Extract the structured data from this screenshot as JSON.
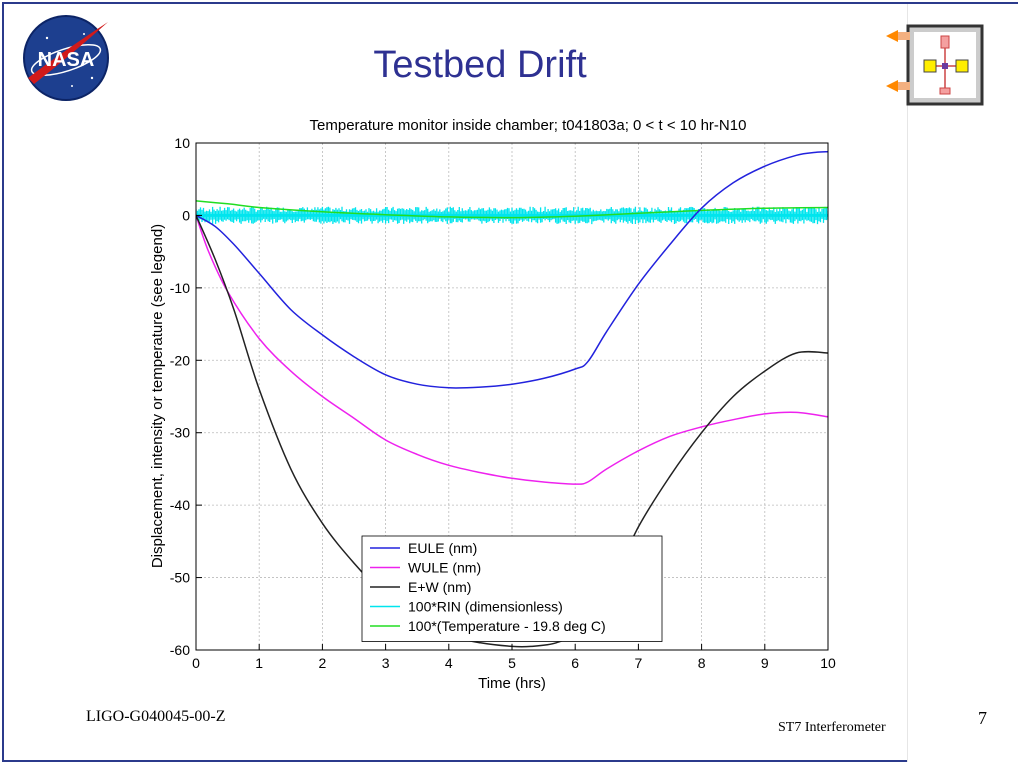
{
  "slide": {
    "title": "Testbed Drift",
    "footer_left": "LIGO-G040045-00-Z",
    "footer_right": "ST7  Interferometer",
    "page_number": "7"
  },
  "logos": {
    "nasa_text": "NASA"
  },
  "colors": {
    "frame": "#2b3a8c",
    "title": "#2e3192"
  },
  "chart_data": {
    "type": "line",
    "title": "Temperature monitor inside chamber; t041803a; 0 < t < 10 hr-N10",
    "xlabel": "Time (hrs)",
    "ylabel": "Displacement, intensity or temperature (see legend)",
    "xlim": [
      0,
      10
    ],
    "ylim": [
      -60,
      10
    ],
    "xticks": [
      0,
      1,
      2,
      3,
      4,
      5,
      6,
      7,
      8,
      9,
      10
    ],
    "yticks": [
      10,
      0,
      -10,
      -20,
      -30,
      -40,
      -50,
      -60
    ],
    "grid": true,
    "legend_position": "bottom-center",
    "series": [
      {
        "name": "EULE (nm)",
        "color": "#2222dd",
        "x": [
          0,
          0.3,
          0.6,
          1.0,
          1.5,
          2.0,
          2.5,
          3.0,
          3.5,
          4.0,
          4.5,
          5.0,
          5.5,
          6.0,
          6.2,
          6.5,
          7.0,
          7.5,
          8.0,
          8.5,
          9.0,
          9.5,
          9.8,
          10.0
        ],
        "y": [
          0,
          -1.5,
          -4,
          -8,
          -13,
          -16.5,
          -19.5,
          -22,
          -23.3,
          -23.8,
          -23.7,
          -23.3,
          -22.5,
          -21.2,
          -20.2,
          -16,
          -9.5,
          -4,
          1,
          4.5,
          6.8,
          8.3,
          8.7,
          8.8
        ]
      },
      {
        "name": "WULE (nm)",
        "color": "#ee22ee",
        "x": [
          0,
          0.2,
          0.5,
          1.0,
          1.5,
          2.0,
          2.5,
          3.0,
          3.5,
          4.0,
          4.5,
          5.0,
          5.5,
          6.0,
          6.2,
          6.5,
          7.0,
          7.5,
          8.0,
          8.5,
          9.0,
          9.5,
          10.0
        ],
        "y": [
          0,
          -5,
          -10.5,
          -17,
          -21.5,
          -25,
          -28,
          -31,
          -33,
          -34.5,
          -35.5,
          -36.3,
          -36.8,
          -37.1,
          -36.8,
          -35,
          -32.5,
          -30.5,
          -29.2,
          -28.2,
          -27.4,
          -27.2,
          -27.8
        ]
      },
      {
        "name": "E+W (nm)",
        "color": "#222222",
        "x": [
          0,
          0.3,
          0.6,
          1.0,
          1.5,
          2.0,
          2.5,
          3.0,
          3.5,
          4.0,
          4.5,
          5.0,
          5.3,
          5.7,
          6.0,
          6.5,
          7.0,
          7.5,
          8.0,
          8.5,
          9.0,
          9.5,
          10.0
        ],
        "y": [
          0,
          -6,
          -13,
          -24,
          -35,
          -42.5,
          -48,
          -52.5,
          -56,
          -58,
          -59,
          -59.5,
          -59.5,
          -59,
          -57.5,
          -52,
          -43,
          -36,
          -30,
          -25,
          -21.5,
          -19,
          -19
        ]
      },
      {
        "name": "100*RIN (dimensionless)",
        "color": "#00e5ee",
        "x": [
          0,
          10
        ],
        "y": [
          0,
          0
        ],
        "noise_band": [
          -1.2,
          1.2
        ]
      },
      {
        "name": "100*(Temperature - 19.8 deg C)",
        "color": "#22dd22",
        "x": [
          0,
          0.5,
          1.0,
          2.0,
          3.0,
          4.0,
          5.0,
          6.0,
          7.0,
          8.0,
          9.0,
          10.0
        ],
        "y": [
          2,
          1.6,
          1.1,
          0.5,
          0.1,
          -0.2,
          -0.3,
          -0.1,
          0.3,
          0.7,
          1.0,
          1.1
        ]
      }
    ]
  }
}
